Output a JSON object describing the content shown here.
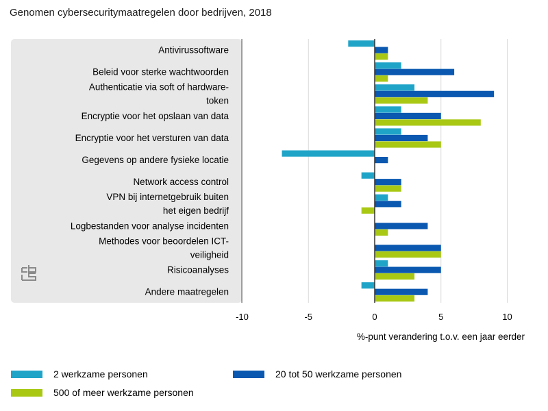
{
  "chart_data": {
    "type": "bar",
    "orientation": "horizontal",
    "title": "Genomen cybersecuritymaatregelen door bedrijven, 2018",
    "xlabel": "%-punt verandering t.o.v. een jaar eerder",
    "xlim": [
      -10,
      12
    ],
    "xticks": [
      -10,
      -5,
      0,
      5,
      10
    ],
    "xtick_labels": [
      "-10",
      "-5",
      "0",
      "5",
      "10"
    ],
    "categories": [
      [
        "Antivirussoftware"
      ],
      [
        "Beleid voor sterke wachtwoorden"
      ],
      [
        "Authenticatie via soft of hardware-",
        "token"
      ],
      [
        "Encryptie voor het opslaan van data"
      ],
      [
        "Encryptie voor het versturen van data"
      ],
      [
        "Gegevens op andere fysieke locatie"
      ],
      [
        "Network access control"
      ],
      [
        "VPN bij internetgebruik buiten",
        "het eigen bedrijf"
      ],
      [
        "Logbestanden voor analyse incidenten"
      ],
      [
        "Methodes voor beoordelen ICT-",
        "veiligheid"
      ],
      [
        "Risicoanalyses"
      ],
      [
        "Andere maatregelen"
      ]
    ],
    "series": [
      {
        "name": "2 werkzame personen",
        "color": "#1fa4c8",
        "values": [
          -2,
          2,
          3,
          2,
          2,
          -7,
          -1,
          1,
          0,
          0,
          1,
          -1
        ]
      },
      {
        "name": "20 tot 50 werkzame personen",
        "color": "#0a58b0",
        "values": [
          1,
          6,
          9,
          5,
          4,
          1,
          2,
          2,
          4,
          5,
          5,
          4
        ]
      },
      {
        "name": "500 of meer werkzame personen",
        "color": "#a8c814",
        "values": [
          1,
          1,
          4,
          8,
          5,
          0,
          2,
          -1,
          1,
          5,
          3,
          3
        ]
      }
    ],
    "grid": true,
    "legend_position": "bottom"
  },
  "logo": {
    "name": "cbs"
  }
}
